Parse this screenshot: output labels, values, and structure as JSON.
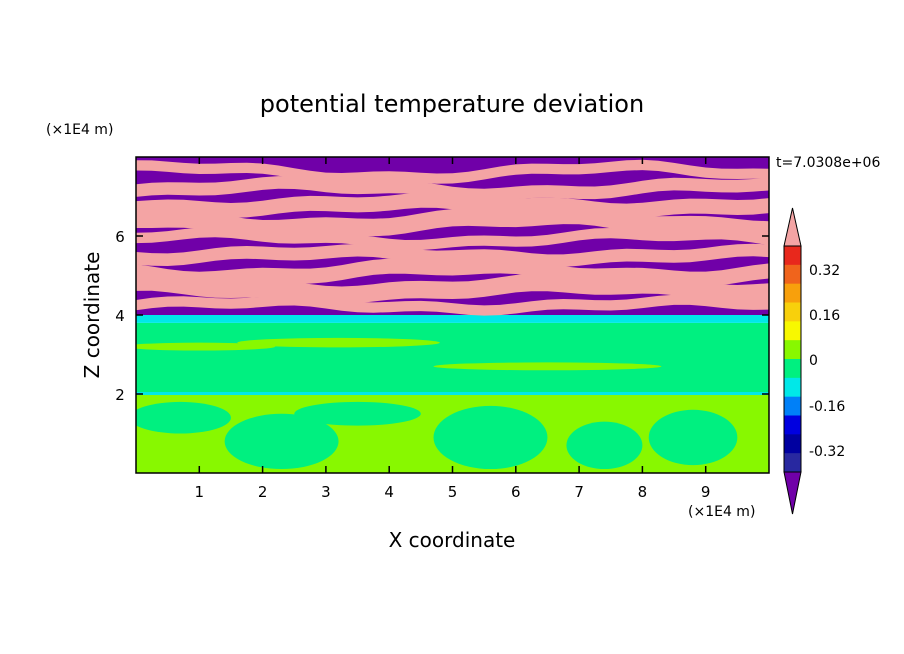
{
  "chart_data": {
    "type": "heatmap",
    "title": "potential temperature deviation",
    "xlabel": "X coordinate",
    "ylabel": "Z coordinate",
    "x_unit": "(×1E4 m)",
    "y_unit": "(×1E4 m)",
    "time_label": "t=7.0308e+06",
    "xlim": [
      0,
      10
    ],
    "ylim": [
      0,
      8
    ],
    "x_ticks": [
      "1",
      "2",
      "3",
      "4",
      "5",
      "6",
      "7",
      "8",
      "9"
    ],
    "y_ticks": [
      "2",
      "4",
      "6"
    ],
    "colorbar": {
      "levels": [
        -0.48,
        -0.4,
        -0.32,
        -0.24,
        -0.16,
        -0.08,
        0,
        0.08,
        0.16,
        0.24,
        0.32,
        0.4,
        0.48
      ],
      "labels": [
        "0.32",
        "0.16",
        "0",
        "-0.16",
        "-0.32"
      ],
      "colors_top_to_bottom": [
        "#f4a4a4",
        "#e8281c",
        "#f0641c",
        "#f8a00c",
        "#f8d00c",
        "#f8f800",
        "#88f800",
        "#00f080",
        "#00e8e8",
        "#0080f8",
        "#0000e0",
        "#0000a0",
        "#2828a0",
        "#7000a8"
      ],
      "over_color": "#f4a4a4",
      "under_color": "#7000a8",
      "extend": "both"
    },
    "bands": [
      {
        "z_bottom": 0,
        "z_top": 2.0,
        "dominant": "#88f800",
        "secondary": "#00f080"
      },
      {
        "z_bottom": 2.0,
        "z_top": 3.8,
        "dominant": "#00f080",
        "secondary": "#88f800"
      },
      {
        "z_bottom": 3.8,
        "z_top": 4.0,
        "dominant": "#00e8e8",
        "secondary": "#0080f8"
      },
      {
        "z_bottom": 4.0,
        "z_top": 8.0,
        "dominant": "#7000a8",
        "secondary": "#f4a4a4"
      }
    ]
  }
}
